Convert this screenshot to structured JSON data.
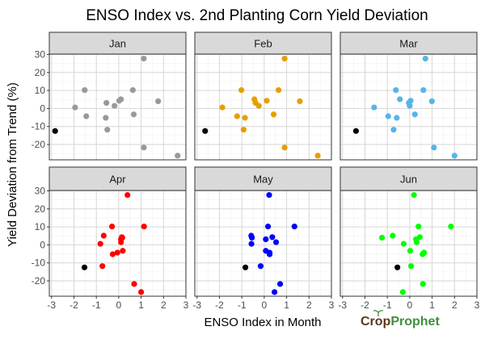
{
  "chart_data": {
    "type": "scatter",
    "title": "ENSO Index vs. 2nd Planting Corn Yield Deviation",
    "xlabel": "ENSO Index in Month",
    "ylabel": "Yield Deviation from Trend (%)",
    "xlim": [
      -3.1,
      3.0
    ],
    "ylim": [
      -28.5,
      30.2
    ],
    "xticks": [
      -3,
      -2,
      -1,
      0,
      1,
      2,
      3
    ],
    "yticks": [
      -20,
      -10,
      0,
      10,
      20,
      30
    ],
    "grid": true,
    "highlight_color": "#000000",
    "panels": [
      {
        "label": "Jan",
        "color": "#999999",
        "highlight": [
          -2.84,
          -12.5
        ],
        "points": [
          [
            -1.95,
            0.6
          ],
          [
            -1.52,
            10.2
          ],
          [
            -1.45,
            -4.3
          ],
          [
            -0.55,
            3.1
          ],
          [
            -0.58,
            -5.2
          ],
          [
            -0.51,
            -11.8
          ],
          [
            -0.19,
            1.5
          ],
          [
            0.02,
            4.3
          ],
          [
            0.1,
            5.1
          ],
          [
            0.63,
            10.2
          ],
          [
            0.67,
            -3.3
          ],
          [
            1.12,
            27.7
          ],
          [
            1.12,
            -21.7
          ],
          [
            1.76,
            4.0
          ],
          [
            2.63,
            -26.2
          ]
        ]
      },
      {
        "label": "Feb",
        "color": "#E69F00",
        "highlight": [
          -2.64,
          -12.5
        ],
        "points": [
          [
            -1.87,
            0.6
          ],
          [
            -1.02,
            10.2
          ],
          [
            -1.21,
            -4.3
          ],
          [
            -0.86,
            -5.2
          ],
          [
            -0.92,
            -11.8
          ],
          [
            -0.44,
            5.1
          ],
          [
            -0.39,
            3.1
          ],
          [
            -0.24,
            1.5
          ],
          [
            0.11,
            4.3
          ],
          [
            0.64,
            10.2
          ],
          [
            0.42,
            -3.3
          ],
          [
            0.91,
            27.7
          ],
          [
            0.91,
            -21.7
          ],
          [
            1.59,
            4.0
          ],
          [
            2.39,
            -26.2
          ]
        ]
      },
      {
        "label": "Mar",
        "color": "#56B4E9",
        "highlight": [
          -2.4,
          -12.5
        ],
        "points": [
          [
            -1.59,
            0.6
          ],
          [
            -0.62,
            10.2
          ],
          [
            -0.96,
            -4.3
          ],
          [
            -0.58,
            -5.2
          ],
          [
            -0.72,
            -11.8
          ],
          [
            -0.44,
            5.1
          ],
          [
            -0.04,
            3.1
          ],
          [
            0.04,
            4.3
          ],
          [
            0.0,
            1.5
          ],
          [
            0.61,
            10.2
          ],
          [
            0.23,
            -3.3
          ],
          [
            0.7,
            27.7
          ],
          [
            1.08,
            -21.7
          ],
          [
            0.99,
            4.0
          ],
          [
            2.0,
            -26.2
          ]
        ]
      },
      {
        "label": "Apr",
        "color": "#FF0000",
        "highlight": [
          -1.53,
          -12.5
        ],
        "points": [
          [
            0.39,
            27.7
          ],
          [
            1.13,
            10.2
          ],
          [
            -0.3,
            10.2
          ],
          [
            -0.67,
            5.1
          ],
          [
            -0.82,
            0.6
          ],
          [
            -0.73,
            -11.8
          ],
          [
            0.14,
            4.3
          ],
          [
            0.16,
            4.0
          ],
          [
            0.1,
            3.1
          ],
          [
            0.1,
            1.5
          ],
          [
            0.18,
            -3.3
          ],
          [
            -0.06,
            -4.3
          ],
          [
            -0.27,
            -5.2
          ],
          [
            0.69,
            -21.7
          ],
          [
            1.0,
            -26.2
          ]
        ]
      },
      {
        "label": "May",
        "color": "#0000FF",
        "highlight": [
          -0.84,
          -12.5
        ],
        "points": [
          [
            0.22,
            27.7
          ],
          [
            0.17,
            10.2
          ],
          [
            1.35,
            10.2
          ],
          [
            -0.58,
            5.1
          ],
          [
            -0.55,
            4.0
          ],
          [
            -0.57,
            0.6
          ],
          [
            0.07,
            3.1
          ],
          [
            0.36,
            4.3
          ],
          [
            0.53,
            1.5
          ],
          [
            0.07,
            -3.3
          ],
          [
            0.24,
            -4.3
          ],
          [
            0.24,
            -5.2
          ],
          [
            -0.16,
            -11.8
          ],
          [
            0.71,
            -21.7
          ],
          [
            0.46,
            -26.2
          ]
        ]
      },
      {
        "label": "Jun",
        "color": "#00FF00",
        "highlight": [
          -0.55,
          -12.5
        ],
        "points": [
          [
            0.19,
            27.7
          ],
          [
            0.39,
            10.2
          ],
          [
            1.84,
            10.2
          ],
          [
            -0.76,
            5.1
          ],
          [
            -1.24,
            4.0
          ],
          [
            0.45,
            4.3
          ],
          [
            0.28,
            3.1
          ],
          [
            0.31,
            1.5
          ],
          [
            -0.27,
            0.6
          ],
          [
            0.02,
            -3.3
          ],
          [
            0.64,
            -4.3
          ],
          [
            0.57,
            -5.2
          ],
          [
            0.06,
            -11.8
          ],
          [
            0.59,
            -21.7
          ],
          [
            -0.31,
            -26.2
          ]
        ]
      }
    ]
  },
  "logo": {
    "part1": "Crop",
    "part2": "Prophet",
    "color1": "#5a3a1a",
    "color2": "#3f8f3a"
  }
}
